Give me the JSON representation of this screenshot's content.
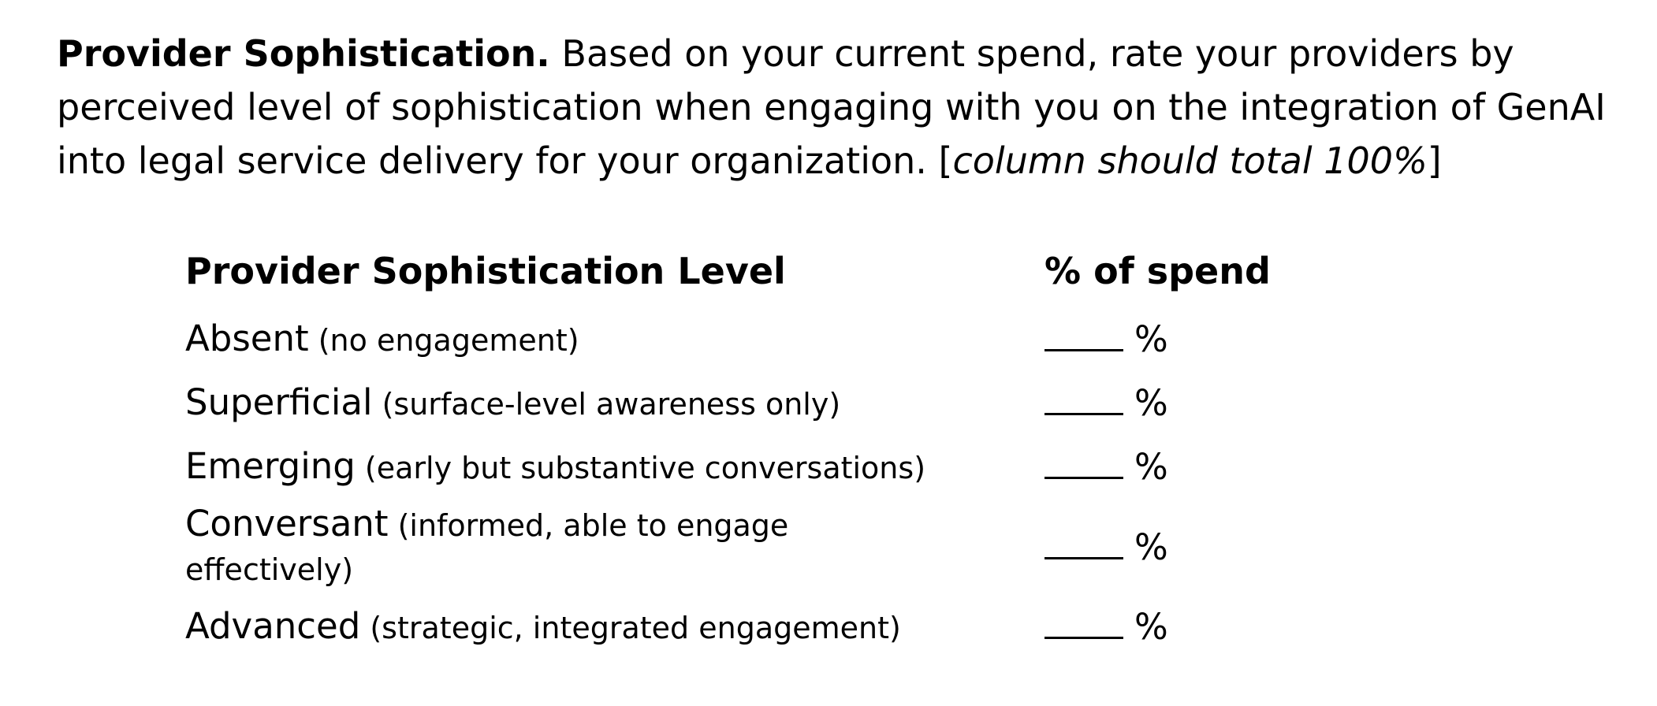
{
  "intro": {
    "lead": "Provider Sophistication.",
    "body": " Based on your current spend, rate your providers by perceived level of sophistication when engaging with you on the integration of GenAI into legal service delivery for your organization. [",
    "note": "column should total 100%",
    "close": "]"
  },
  "table": {
    "headers": {
      "level": "Provider Sophistication Level",
      "spend": "% of spend"
    },
    "rows": [
      {
        "name": "Absent",
        "desc": " (no engagement)",
        "blank": "____",
        "unit": "%"
      },
      {
        "name": "Superficial",
        "desc": " (surface-level awareness only)",
        "blank": "____",
        "unit": "%"
      },
      {
        "name": "Emerging",
        "desc": " (early but substantive conversations)",
        "blank": "____",
        "unit": "%"
      },
      {
        "name": "Conversant",
        "desc": " (informed, able to engage effectively)",
        "blank": "____",
        "unit": "%"
      },
      {
        "name": "Advanced",
        "desc": " (strategic, integrated engagement)",
        "blank": "____",
        "unit": "%"
      }
    ]
  }
}
